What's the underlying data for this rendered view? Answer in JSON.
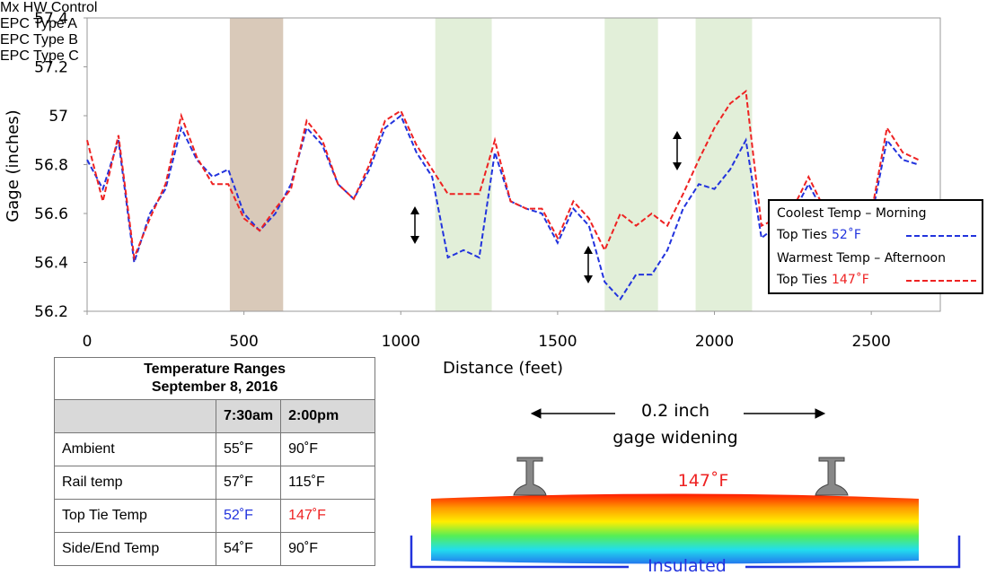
{
  "chart_data": {
    "type": "line",
    "xlabel": "Distance (feet)",
    "ylabel": "Gage (inches)",
    "xlim": [
      0,
      2720
    ],
    "xticks": [
      0,
      500,
      1000,
      1500,
      2000,
      2500
    ],
    "ylim": [
      56.2,
      57.4
    ],
    "yticks": [
      56.2,
      56.4,
      56.6,
      56.8,
      57,
      57.2,
      57.4
    ],
    "x": [
      0,
      50,
      100,
      150,
      200,
      250,
      300,
      350,
      400,
      450,
      500,
      550,
      600,
      650,
      700,
      750,
      800,
      850,
      900,
      950,
      1000,
      1050,
      1100,
      1150,
      1200,
      1250,
      1300,
      1350,
      1400,
      1450,
      1500,
      1550,
      1600,
      1650,
      1700,
      1750,
      1800,
      1850,
      1900,
      1950,
      2000,
      2050,
      2100,
      2150,
      2200,
      2250,
      2300,
      2350,
      2400,
      2450,
      2500,
      2550,
      2600,
      2650
    ],
    "series": [
      {
        "name": "Coolest Temp – Morning",
        "detail": "Top Ties",
        "temp": "52˚F",
        "color": "#2233dd",
        "values": [
          56.82,
          56.7,
          56.9,
          56.4,
          56.6,
          56.7,
          56.95,
          56.82,
          56.75,
          56.78,
          56.6,
          56.53,
          56.6,
          56.72,
          56.95,
          56.88,
          56.72,
          56.66,
          56.78,
          56.95,
          57.0,
          56.85,
          56.75,
          56.42,
          56.45,
          56.42,
          56.85,
          56.65,
          56.62,
          56.6,
          56.48,
          56.62,
          56.55,
          56.32,
          56.25,
          56.35,
          56.35,
          56.45,
          56.62,
          56.72,
          56.7,
          56.78,
          56.9,
          56.5,
          56.55,
          56.6,
          56.72,
          56.6,
          56.65,
          56.62,
          56.58,
          56.9,
          56.82,
          56.8
        ]
      },
      {
        "name": "Warmest Temp – Afternoon",
        "detail": "Top Ties",
        "temp": "147˚F",
        "color": "#ee2222",
        "values": [
          56.9,
          56.65,
          56.92,
          56.42,
          56.58,
          56.72,
          57.0,
          56.83,
          56.72,
          56.72,
          56.58,
          56.53,
          56.62,
          56.7,
          56.98,
          56.9,
          56.72,
          56.66,
          56.8,
          56.98,
          57.02,
          56.88,
          56.78,
          56.68,
          56.68,
          56.68,
          56.9,
          56.65,
          56.62,
          56.62,
          56.5,
          56.65,
          56.58,
          56.45,
          56.6,
          56.55,
          56.6,
          56.55,
          56.68,
          56.82,
          56.95,
          57.05,
          57.1,
          56.55,
          56.58,
          56.62,
          56.75,
          56.62,
          56.65,
          56.65,
          56.6,
          56.95,
          56.85,
          56.82
        ]
      }
    ],
    "regions": [
      {
        "label": "Mx HW Control",
        "start": 455,
        "end": 625,
        "color": "#d9c9b9"
      },
      {
        "label": "EPC Type A",
        "start": 1110,
        "end": 1290,
        "color": "#e2efd9"
      },
      {
        "label": "EPC Type B",
        "start": 1650,
        "end": 1820,
        "color": "#e2efd9"
      },
      {
        "label": "EPC Type C",
        "start": 1940,
        "end": 2120,
        "color": "#e2efd9"
      }
    ]
  },
  "table": {
    "title": "Temperature Ranges",
    "subtitle": "September 8, 2016",
    "columns": [
      "7:30am",
      "2:00pm"
    ],
    "rows": [
      [
        "Ambient",
        "55˚F",
        "90˚F"
      ],
      [
        "Rail temp",
        "57˚F",
        "115˚F"
      ],
      [
        "Top Tie Temp",
        "52˚F",
        "147˚F"
      ],
      [
        "Side/End Temp",
        "54˚F",
        "90˚F"
      ]
    ]
  },
  "diagram": {
    "label_lines": [
      "0.2 inch",
      "gage widening"
    ],
    "temp": "147˚F",
    "base": "Insulated"
  }
}
